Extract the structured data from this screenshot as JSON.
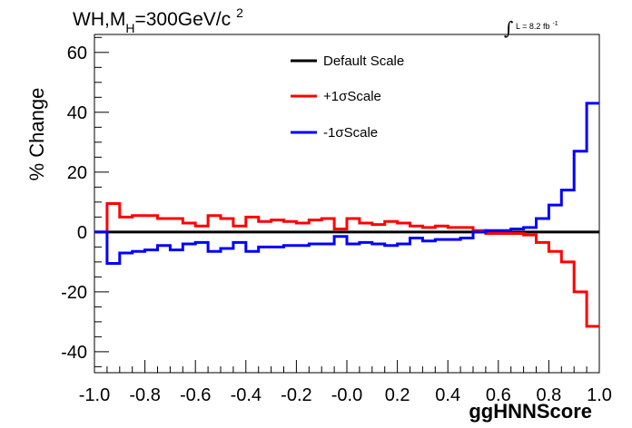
{
  "title": {
    "main": "WH,M",
    "subscript": "H",
    "rest": "=300GeV/c",
    "superscript": "2"
  },
  "luminosity": {
    "integral_symbol": "∫",
    "text": "L = 8.2 fb",
    "superscript": "-1"
  },
  "chart_data": {
    "type": "line",
    "step": true,
    "xlabel": "ggHNNScore",
    "ylabel": "% Change",
    "xlim": [
      -1.0,
      1.0
    ],
    "ylim": [
      -47,
      66
    ],
    "x_ticks": [
      "-1.0",
      "-0.8",
      "-0.6",
      "-0.4",
      "-0.2",
      "-0.0",
      "0.2",
      "0.4",
      "0.6",
      "0.8",
      "1.0"
    ],
    "y_ticks": [
      "-40",
      "-20",
      "0",
      "20",
      "40",
      "60"
    ],
    "bin_edges": [
      -1.0,
      -0.95,
      -0.9,
      -0.85,
      -0.8,
      -0.75,
      -0.7,
      -0.65,
      -0.6,
      -0.55,
      -0.5,
      -0.45,
      -0.4,
      -0.35,
      -0.3,
      -0.25,
      -0.2,
      -0.15,
      -0.1,
      -0.05,
      0.0,
      0.05,
      0.1,
      0.15,
      0.2,
      0.25,
      0.3,
      0.35,
      0.4,
      0.45,
      0.5,
      0.55,
      0.6,
      0.65,
      0.7,
      0.75,
      0.8,
      0.85,
      0.9,
      0.95,
      1.0
    ],
    "series": [
      {
        "name": "Default Scale",
        "color": "#000000",
        "values": [
          0,
          0,
          0,
          0,
          0,
          0,
          0,
          0,
          0,
          0,
          0,
          0,
          0,
          0,
          0,
          0,
          0,
          0,
          0,
          0,
          0,
          0,
          0,
          0,
          0,
          0,
          0,
          0,
          0,
          0,
          0,
          0,
          0,
          0,
          0,
          0,
          0,
          0,
          0,
          0
        ]
      },
      {
        "name": "+1σScale",
        "color": "#ff0000",
        "values": [
          0,
          9.5,
          5,
          5.5,
          5.5,
          4.5,
          4.5,
          3,
          2,
          5.5,
          4.5,
          2,
          5,
          3.5,
          4,
          3.5,
          3,
          4,
          4.5,
          1,
          4.5,
          3,
          2.5,
          3.5,
          3,
          2,
          1.5,
          2,
          1.5,
          1.5,
          0.5,
          -0.5,
          -0.5,
          -0.5,
          -1,
          -3.5,
          -6.5,
          -10,
          -20,
          -31.5
        ]
      },
      {
        "name": "-1σScale",
        "color": "#0000ff",
        "values": [
          0,
          -10.5,
          -7,
          -6.5,
          -6,
          -4.5,
          -6,
          -4,
          -3.5,
          -6.5,
          -5.5,
          -3.5,
          -6.5,
          -5,
          -5,
          -4.5,
          -4.5,
          -4,
          -4,
          -1.5,
          -4,
          -3.5,
          -4,
          -4.5,
          -4,
          -2,
          -3,
          -2.5,
          -2.5,
          -2,
          0,
          0.5,
          0.5,
          1,
          1.5,
          4.5,
          9,
          14,
          27,
          43
        ]
      }
    ],
    "legend": {
      "position": "top-center"
    },
    "grid": false
  }
}
